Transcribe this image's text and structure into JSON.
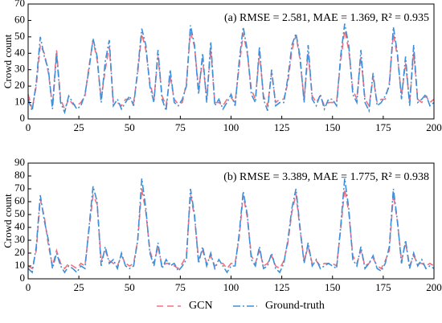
{
  "chart_data": [
    {
      "type": "line",
      "ylabel": "Crowd count",
      "annotation": "(a) RMSE = 2.581, MAE = 1.369, R² = 0.935",
      "xlim": [
        0,
        200
      ],
      "xticks": [
        0,
        25,
        50,
        75,
        100,
        125,
        150,
        175,
        200
      ],
      "ylim": [
        0,
        70
      ],
      "yticks": [
        0,
        10,
        20,
        30,
        40,
        50,
        60,
        70
      ],
      "x": [
        0,
        2,
        4,
        6,
        8,
        10,
        12,
        14,
        16,
        18,
        20,
        22,
        24,
        26,
        28,
        30,
        32,
        34,
        36,
        38,
        40,
        42,
        44,
        46,
        48,
        50,
        52,
        54,
        56,
        58,
        60,
        62,
        64,
        66,
        68,
        70,
        72,
        74,
        76,
        78,
        80,
        82,
        84,
        86,
        88,
        90,
        92,
        94,
        96,
        98,
        100,
        102,
        104,
        106,
        108,
        110,
        112,
        114,
        116,
        118,
        120,
        122,
        124,
        126,
        128,
        130,
        132,
        134,
        136,
        138,
        140,
        142,
        144,
        146,
        148,
        150,
        152,
        154,
        156,
        158,
        160,
        162,
        164,
        166,
        168,
        170,
        172,
        174,
        176,
        178,
        180,
        182,
        184,
        186,
        188,
        190,
        192,
        194,
        196,
        198,
        200
      ],
      "series": [
        {
          "name": "GCN",
          "color": "#f2707e",
          "dash": "dashed",
          "values": [
            15,
            6,
            20,
            45,
            40,
            28,
            8,
            42,
            12,
            6,
            12,
            9,
            8,
            10,
            14,
            32,
            48,
            36,
            12,
            30,
            44,
            10,
            10,
            8,
            12,
            12,
            10,
            28,
            52,
            42,
            22,
            12,
            38,
            14,
            8,
            26,
            12,
            9,
            10,
            22,
            53,
            44,
            18,
            36,
            12,
            42,
            10,
            10,
            8,
            12,
            13,
            10,
            32,
            52,
            40,
            18,
            12,
            40,
            14,
            8,
            28,
            10,
            12,
            12,
            22,
            42,
            51,
            36,
            12,
            40,
            14,
            10,
            14,
            8,
            10,
            10,
            10,
            35,
            54,
            42,
            18,
            12,
            38,
            12,
            8,
            25,
            10,
            12,
            12,
            22,
            52,
            38,
            14,
            34,
            10,
            40,
            12,
            10,
            14,
            10,
            12
          ]
        },
        {
          "name": "Ground-truth",
          "color": "#3d8fd9",
          "dash": "dashdot",
          "values": [
            12,
            5,
            22,
            50,
            38,
            30,
            6,
            40,
            10,
            4,
            14,
            10,
            6,
            8,
            15,
            30,
            49,
            38,
            10,
            35,
            48,
            8,
            12,
            6,
            10,
            14,
            8,
            30,
            55,
            45,
            20,
            10,
            42,
            12,
            5,
            30,
            10,
            8,
            12,
            20,
            57,
            45,
            15,
            40,
            10,
            47,
            8,
            12,
            6,
            10,
            15,
            8,
            35,
            56,
            42,
            15,
            10,
            44,
            12,
            5,
            30,
            8,
            10,
            10,
            25,
            45,
            52,
            38,
            10,
            45,
            12,
            8,
            15,
            6,
            12,
            12,
            8,
            38,
            58,
            45,
            15,
            10,
            42,
            10,
            5,
            28,
            8,
            10,
            14,
            20,
            56,
            40,
            12,
            38,
            8,
            45,
            10,
            12,
            15,
            8,
            10
          ]
        }
      ]
    },
    {
      "type": "line",
      "ylabel": "Crowd count",
      "annotation": "(b) RMSE = 3.389, MAE = 1.775, R² = 0.938",
      "xlim": [
        0,
        200
      ],
      "xticks": [
        0,
        25,
        50,
        75,
        100,
        125,
        150,
        175,
        200
      ],
      "ylim": [
        0,
        90
      ],
      "yticks": [
        0,
        10,
        20,
        30,
        40,
        50,
        60,
        70,
        80,
        90
      ],
      "x": [
        0,
        2,
        4,
        6,
        8,
        10,
        12,
        14,
        16,
        18,
        20,
        22,
        24,
        26,
        28,
        30,
        32,
        34,
        36,
        38,
        40,
        42,
        44,
        46,
        48,
        50,
        52,
        54,
        56,
        58,
        60,
        62,
        64,
        66,
        68,
        70,
        72,
        74,
        76,
        78,
        80,
        82,
        84,
        86,
        88,
        90,
        92,
        94,
        96,
        98,
        100,
        102,
        104,
        106,
        108,
        110,
        112,
        114,
        116,
        118,
        120,
        122,
        124,
        126,
        128,
        130,
        132,
        134,
        136,
        138,
        140,
        142,
        144,
        146,
        148,
        150,
        152,
        154,
        156,
        158,
        160,
        162,
        164,
        166,
        168,
        170,
        172,
        174,
        176,
        178,
        180,
        182,
        184,
        186,
        188,
        190,
        192,
        194,
        196,
        198,
        200
      ],
      "series": [
        {
          "name": "GCN",
          "color": "#f2707e",
          "dash": "dashed",
          "values": [
            10,
            8,
            22,
            62,
            48,
            26,
            10,
            22,
            12,
            8,
            12,
            10,
            8,
            12,
            10,
            38,
            65,
            58,
            14,
            22,
            14,
            12,
            10,
            18,
            12,
            10,
            12,
            30,
            70,
            52,
            22,
            12,
            25,
            10,
            12,
            12,
            10,
            8,
            12,
            18,
            66,
            48,
            15,
            22,
            12,
            18,
            10,
            12,
            12,
            8,
            12,
            12,
            32,
            65,
            48,
            18,
            12,
            22,
            10,
            12,
            18,
            10,
            8,
            14,
            28,
            52,
            66,
            38,
            14,
            25,
            12,
            14,
            10,
            12,
            12,
            12,
            10,
            38,
            70,
            52,
            18,
            12,
            22,
            10,
            12,
            16,
            10,
            8,
            14,
            22,
            66,
            44,
            14,
            28,
            10,
            18,
            12,
            12,
            10,
            12,
            10
          ]
        },
        {
          "name": "Ground-truth",
          "color": "#3d8fd9",
          "dash": "dashdot",
          "values": [
            8,
            5,
            25,
            65,
            45,
            30,
            8,
            20,
            10,
            5,
            10,
            8,
            5,
            10,
            8,
            40,
            72,
            60,
            10,
            25,
            12,
            15,
            8,
            20,
            10,
            8,
            10,
            30,
            78,
            55,
            20,
            10,
            28,
            8,
            15,
            10,
            12,
            6,
            10,
            15,
            70,
            50,
            12,
            25,
            10,
            20,
            8,
            15,
            10,
            5,
            10,
            10,
            35,
            68,
            50,
            15,
            10,
            25,
            8,
            10,
            20,
            8,
            5,
            12,
            30,
            55,
            70,
            40,
            12,
            28,
            10,
            15,
            8,
            10,
            12,
            10,
            8,
            40,
            78,
            55,
            15,
            10,
            25,
            8,
            12,
            18,
            8,
            6,
            12,
            25,
            70,
            45,
            12,
            30,
            8,
            20,
            10,
            15,
            8,
            10,
            8
          ]
        }
      ]
    }
  ]
}
